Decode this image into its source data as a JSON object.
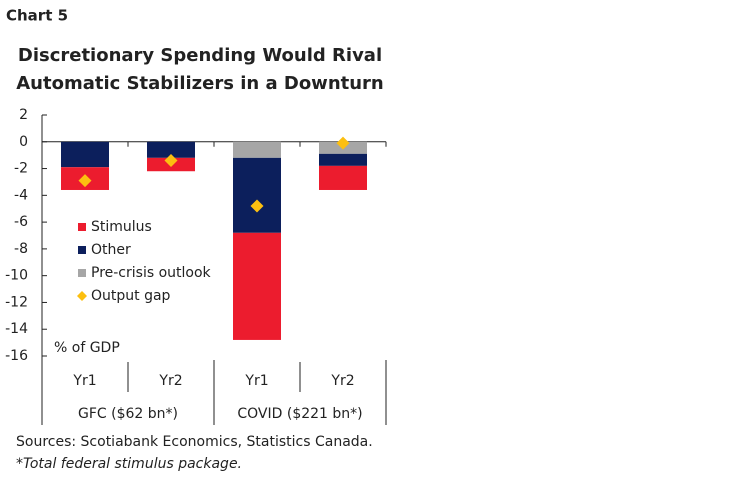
{
  "label": "Chart 5",
  "chart_data": {
    "type": "bar",
    "stacked": true,
    "title": [
      "Discretionary Spending Would Rival",
      "Automatic Stabilizers in a Downturn"
    ],
    "y_label": "% of GDP",
    "categories": [
      "Yr1",
      "Yr2",
      "Yr1",
      "Yr2"
    ],
    "groups": [
      "GFC ($62 bn*)",
      "COVID ($221 bn*)"
    ],
    "series": [
      {
        "name": "Stimulus",
        "color": "#ec1c2e",
        "values": [
          -1.7,
          -1.0,
          -8.0,
          -1.8
        ]
      },
      {
        "name": "Other",
        "color": "#0c1f5c",
        "values": [
          -1.9,
          -1.2,
          -5.6,
          -0.9
        ]
      },
      {
        "name": "Pre-crisis outlook",
        "color": "#a6a6a6",
        "values": [
          0,
          0,
          -1.2,
          -0.9
        ]
      },
      {
        "name": "Output gap",
        "color": "#fcbf10",
        "type": "scatter",
        "marker": "diamond",
        "values": [
          -2.9,
          -1.4,
          -4.8,
          -0.1
        ]
      }
    ],
    "stack_order": [
      2,
      1,
      0
    ],
    "ylim": [
      2,
      -16
    ],
    "yticks": [
      2,
      0,
      -2,
      -4,
      -6,
      -8,
      -10,
      -12,
      -14,
      -16
    ],
    "legend": "lower-left"
  },
  "sources": "Sources: Scotiabank Economics, Statistics Canada.",
  "footnote": "*Total federal stimulus package."
}
